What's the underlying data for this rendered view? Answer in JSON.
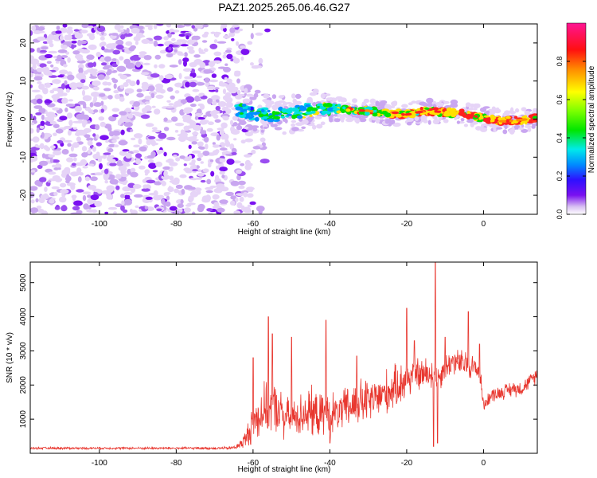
{
  "title": "PAZ1.2025.265.06.46.G27",
  "chart_data": [
    {
      "type": "heatmap",
      "title": "PAZ1.2025.265.06.46.G27",
      "xlabel": "Height of straight line (km)",
      "ylabel": "Frequency (Hz)",
      "xlim": [
        -118,
        14
      ],
      "ylim": [
        -25,
        25
      ],
      "xticks": [
        -100,
        -80,
        -60,
        -40,
        -20,
        0
      ],
      "yticks": [
        -20,
        -10,
        0,
        10,
        20
      ],
      "noise_region_x": [
        -118,
        -64
      ],
      "signal_ridge": {
        "x": [
          -64,
          -60,
          -55,
          -50,
          -45,
          -40,
          -35,
          -30,
          -25,
          -20,
          -15,
          -10,
          -5,
          0,
          5,
          10,
          14
        ],
        "freq": [
          2.5,
          1.6,
          1.0,
          1.4,
          2.5,
          2.8,
          2.4,
          2.2,
          1.4,
          1.2,
          2.2,
          1.8,
          1.4,
          0.2,
          -0.6,
          -0.2,
          0.4
        ]
      },
      "colorbar": {
        "label": "Normalized spectral amplitude",
        "range": [
          0,
          1
        ],
        "ticks": [
          0.0,
          0.2,
          0.4,
          0.6,
          0.8
        ],
        "tick_labels": [
          "0.0",
          "0.2",
          "0.4",
          "0.6",
          "0.8"
        ],
        "colormap": [
          "#ffffff",
          "#dcc5f4",
          "#7a10f0",
          "#3010ff",
          "#0090ff",
          "#00f0f0",
          "#00f000",
          "#80ff00",
          "#ffff00",
          "#ff8000",
          "#ff0000",
          "#ff1493"
        ]
      }
    },
    {
      "type": "line",
      "xlabel": "Height of straight line (km)",
      "ylabel": "SNR (10 * v/v)",
      "xlim": [
        -118,
        14
      ],
      "ylim": [
        0,
        5600
      ],
      "xticks": [
        -100,
        -80,
        -60,
        -40,
        -20,
        0
      ],
      "yticks": [
        1000,
        2000,
        3000,
        4000,
        5000
      ],
      "color": "#e8372f",
      "envelope": {
        "x": [
          -118,
          -100,
          -80,
          -66,
          -64,
          -62,
          -60,
          -57,
          -55,
          -52,
          -50,
          -48,
          -46,
          -44,
          -42,
          -40,
          -38,
          -35,
          -32,
          -30,
          -28,
          -25,
          -22,
          -20,
          -18,
          -15,
          -12.5,
          -12,
          -10,
          -8,
          -5,
          -3,
          -1,
          0,
          2,
          5,
          8,
          10,
          12,
          14
        ],
        "mean": [
          150,
          150,
          150,
          150,
          200,
          400,
          900,
          1300,
          1400,
          1100,
          1000,
          1100,
          1250,
          1150,
          1100,
          1200,
          1150,
          1350,
          1500,
          1500,
          1600,
          1800,
          2000,
          2200,
          2300,
          2300,
          2350,
          2200,
          2500,
          2700,
          2600,
          2550,
          2400,
          1400,
          1700,
          1800,
          1900,
          1900,
          2100,
          2300
        ],
        "amp": [
          40,
          40,
          40,
          50,
          100,
          300,
          700,
          900,
          900,
          700,
          650,
          700,
          900,
          800,
          700,
          800,
          600,
          800,
          800,
          800,
          700,
          800,
          700,
          800,
          600,
          600,
          600,
          500,
          500,
          450,
          500,
          450,
          400,
          200,
          250,
          250,
          280,
          250,
          250,
          300
        ]
      },
      "peaks": [
        {
          "x": -60,
          "y": 2800
        },
        {
          "x": -56,
          "y": 4000
        },
        {
          "x": -55,
          "y": 3500
        },
        {
          "x": -50,
          "y": 3400
        },
        {
          "x": -41,
          "y": 3900
        },
        {
          "x": -40,
          "y": 4100
        },
        {
          "x": -33,
          "y": 2850
        },
        {
          "x": -20,
          "y": 4250
        },
        {
          "x": -18,
          "y": 3300
        },
        {
          "x": -12.5,
          "y": 5600
        },
        {
          "x": -10,
          "y": 3400
        },
        {
          "x": -4,
          "y": 4150
        },
        {
          "x": -1,
          "y": 3200
        }
      ],
      "troughs": [
        {
          "x": -13,
          "y": 200
        },
        {
          "x": -12,
          "y": 300
        },
        {
          "x": -40,
          "y": 300
        },
        {
          "x": -52,
          "y": 400
        }
      ]
    }
  ]
}
